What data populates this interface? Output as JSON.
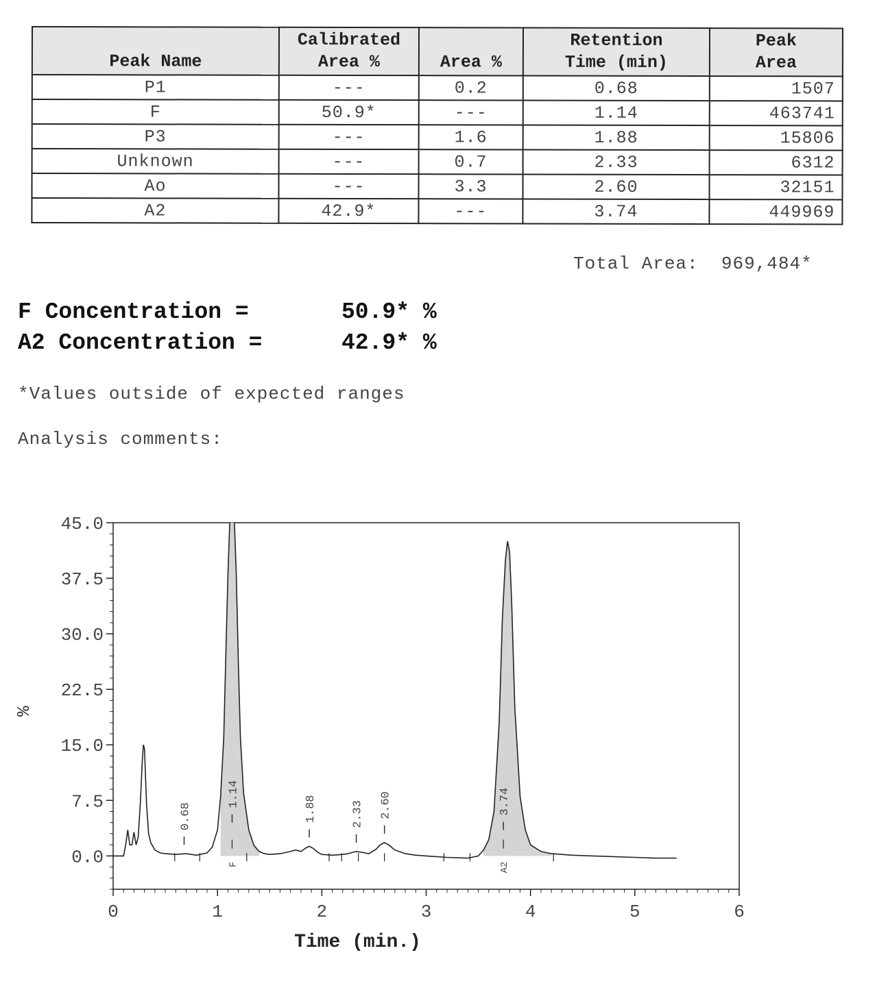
{
  "table": {
    "headers": [
      "Peak Name",
      "Calibrated Area %",
      "Area %",
      "Retention Time (min)",
      "Peak Area"
    ],
    "headers_lines": [
      [
        "Peak Name"
      ],
      [
        "Calibrated",
        "Area %"
      ],
      [
        "Area %"
      ],
      [
        "Retention",
        "Time (min)"
      ],
      [
        "Peak",
        "Area"
      ]
    ],
    "rows": [
      [
        "P1",
        "---",
        "0.2",
        "0.68",
        "1507"
      ],
      [
        "F",
        "50.9*",
        "---",
        "1.14",
        "463741"
      ],
      [
        "P3",
        "---",
        "1.6",
        "1.88",
        "15806"
      ],
      [
        "Unknown",
        "---",
        "0.7",
        "2.33",
        "6312"
      ],
      [
        "Ao",
        "---",
        "3.3",
        "2.60",
        "32151"
      ],
      [
        "A2",
        "42.9*",
        "---",
        "3.74",
        "449969"
      ]
    ]
  },
  "total": {
    "label": "Total Area:",
    "value": "969,484*"
  },
  "concentrations": [
    {
      "label": "F Concentration =",
      "value": "50.9* %"
    },
    {
      "label": "A2 Concentration =",
      "value": "42.9* %"
    }
  ],
  "footnote": "*Values outside of expected ranges",
  "comments_label": "Analysis comments:",
  "chart_data": {
    "type": "line",
    "xlabel": "Time (min.)",
    "ylabel": "%",
    "xlim": [
      0,
      6
    ],
    "ylim": [
      -4.5,
      45.0
    ],
    "x_ticks": [
      "0",
      "1",
      "2",
      "3",
      "4",
      "5",
      "6"
    ],
    "y_ticks": [
      "0.0",
      "7.5",
      "15.0",
      "22.5",
      "30.0",
      "37.5",
      "45.0"
    ],
    "grid": false,
    "peak_labels": [
      {
        "rt": "0.68",
        "x": 0.68,
        "height": 0.3
      },
      {
        "rt": "1.14",
        "x": 1.14,
        "height": 45.0,
        "name": "F"
      },
      {
        "rt": "1.88",
        "x": 1.88,
        "height": 1.3
      },
      {
        "rt": "2.33",
        "x": 2.33,
        "height": 0.6
      },
      {
        "rt": "2.60",
        "x": 2.6,
        "height": 1.8
      },
      {
        "rt": "3.74",
        "x": 3.74,
        "height": 42.5,
        "name": "A2"
      }
    ],
    "series": [
      {
        "x": [
          0.0,
          0.1,
          0.12,
          0.14,
          0.16,
          0.18,
          0.2,
          0.22,
          0.24,
          0.26,
          0.28,
          0.29,
          0.3,
          0.32,
          0.34,
          0.36,
          0.4,
          0.45,
          0.5,
          0.6,
          0.7,
          0.8,
          0.9,
          0.95,
          1.0,
          1.03,
          1.06,
          1.08,
          1.1,
          1.12,
          1.14,
          1.16,
          1.18,
          1.2,
          1.22,
          1.25,
          1.3,
          1.35,
          1.4,
          1.45,
          1.5,
          1.6,
          1.7,
          1.75,
          1.8,
          1.85,
          1.88,
          1.92,
          1.96,
          2.0,
          2.1,
          2.2,
          2.25,
          2.3,
          2.33,
          2.38,
          2.45,
          2.52,
          2.56,
          2.6,
          2.64,
          2.7,
          2.8,
          2.9,
          3.0,
          3.2,
          3.4,
          3.5,
          3.55,
          3.6,
          3.65,
          3.7,
          3.73,
          3.76,
          3.78,
          3.8,
          3.82,
          3.85,
          3.9,
          3.95,
          4.0,
          4.1,
          4.2,
          4.4,
          4.6,
          4.8,
          5.0,
          5.2,
          5.4
        ],
        "y": [
          0.0,
          0.0,
          1.5,
          3.5,
          1.5,
          1.5,
          3.2,
          1.5,
          2.5,
          7.0,
          13.0,
          15.0,
          14.5,
          7.0,
          3.0,
          1.8,
          0.8,
          0.4,
          0.3,
          0.2,
          0.3,
          0.1,
          0.4,
          1.2,
          3.5,
          8.0,
          16.0,
          27.0,
          38.0,
          46.0,
          47.0,
          46.0,
          38.0,
          26.0,
          16.0,
          8.5,
          3.5,
          1.4,
          0.6,
          0.3,
          0.2,
          0.3,
          0.6,
          0.8,
          0.6,
          1.1,
          1.3,
          1.0,
          0.5,
          0.2,
          0.1,
          0.2,
          0.3,
          0.5,
          0.6,
          0.5,
          0.3,
          0.9,
          1.5,
          1.8,
          1.5,
          0.8,
          0.3,
          0.1,
          0.0,
          -0.2,
          -0.3,
          0.0,
          0.8,
          2.2,
          6.0,
          18.0,
          32.0,
          40.0,
          42.5,
          41.0,
          34.0,
          20.0,
          8.0,
          3.5,
          1.5,
          0.6,
          0.3,
          0.1,
          0.0,
          -0.1,
          -0.2,
          -0.3,
          -0.3
        ]
      }
    ],
    "baseline_marks": [
      0.59,
      0.83,
      1.28,
      2.07,
      2.19,
      2.35,
      2.6,
      3.17,
      3.42,
      4.22
    ]
  }
}
